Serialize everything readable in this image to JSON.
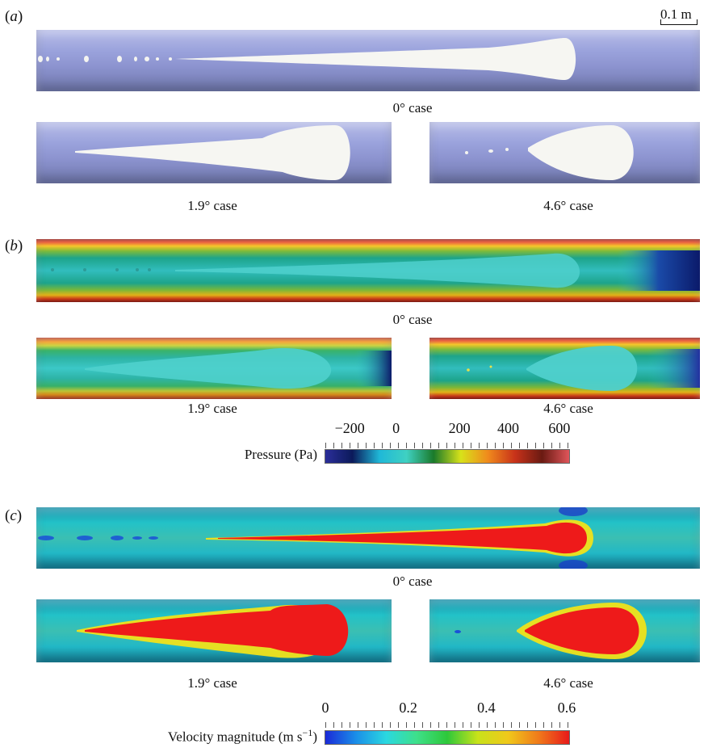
{
  "figure": {
    "scale_bar": {
      "label": "0.1 m"
    },
    "panels": [
      {
        "label_open": "(",
        "label_letter": "a",
        "label_close": ")",
        "captions": {
          "main": "0° case",
          "left": "1.9° case",
          "right": "4.6° case"
        }
      },
      {
        "label_open": "(",
        "label_letter": "b",
        "label_close": ")",
        "captions": {
          "main": "0° case",
          "left": "1.9° case",
          "right": "4.6° case"
        },
        "colorbar": {
          "title": "Pressure (Pa)",
          "ticks": [
            "−200",
            "0",
            "200",
            "400",
            "600"
          ],
          "tick_values": [
            -200,
            0,
            200,
            400,
            600
          ],
          "range": [
            -200,
            600
          ],
          "colors": [
            "#2b2e9a",
            "#0b1a5a",
            "#1fb8d8",
            "#3fd1c2",
            "#1a7a2a",
            "#d8e21a",
            "#f08a1c",
            "#c8321a",
            "#6a1a12",
            "#e0555a"
          ]
        }
      },
      {
        "label_open": "(",
        "label_letter": "c",
        "label_close": ")",
        "captions": {
          "main": "0° case",
          "left": "1.9° case",
          "right": "4.6° case"
        },
        "colorbar": {
          "title": "Velocity magnitude (m s",
          "title_sup": "−1",
          "title_end": ")",
          "ticks": [
            "0",
            "0.2",
            "0.4",
            "0.6"
          ],
          "tick_values": [
            0,
            0.2,
            0.4,
            0.6
          ],
          "range": [
            0,
            0.6
          ],
          "colors": [
            "#1a2ad8",
            "#1a8ee8",
            "#2ad8e0",
            "#3ee08a",
            "#2ec83a",
            "#c8e21a",
            "#f0c81a",
            "#f07a1a",
            "#e81a1a"
          ]
        }
      }
    ]
  }
}
